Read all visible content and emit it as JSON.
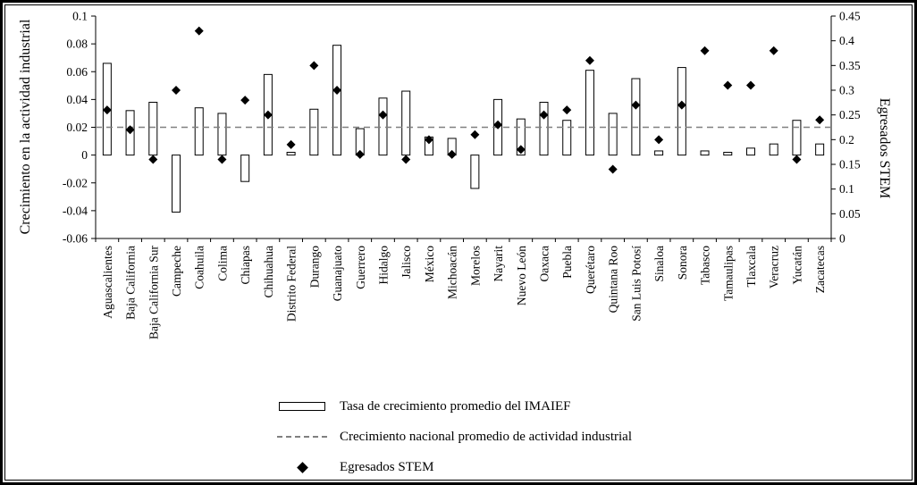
{
  "legend": {
    "bar_label": "Tasa de crecimiento promedio del IMAIEF",
    "line_label": "Crecimiento nacional promedio de actividad industrial",
    "diamond_label": "Egresados STEM"
  },
  "chart_data": {
    "type": "bar+scatter dual-axis",
    "categories": [
      "Aguascalientes",
      "Baja California",
      "Baja California Sur",
      "Campeche",
      "Coahuila",
      "Colima",
      "Chiapas",
      "Chihuahua",
      "Distrito Federal",
      "Durango",
      "Guanajuato",
      "Guerrero",
      "Hidalgo",
      "Jalisco",
      "México",
      "Michoacán",
      "Morelos",
      "Nayarit",
      "Nuevo León",
      "Oaxaca",
      "Puebla",
      "Querétaro",
      "Quintana Roo",
      "San Luis Potosí",
      "Sinaloa",
      "Sonora",
      "Tabasco",
      "Tamaulipas",
      "Tlaxcala",
      "Veracruz",
      "Yucatán",
      "Zacatecas"
    ],
    "series": [
      {
        "name": "Tasa de crecimiento promedio del IMAIEF",
        "type": "bar",
        "axis": "left",
        "values": [
          0.066,
          0.032,
          0.038,
          -0.041,
          0.034,
          0.03,
          -0.019,
          0.058,
          0.002,
          0.033,
          0.079,
          0.019,
          0.041,
          0.046,
          0.013,
          0.012,
          -0.024,
          0.04,
          0.026,
          0.038,
          0.025,
          0.061,
          0.03,
          0.055,
          0.003,
          0.063,
          0.003,
          0.002,
          0.005,
          0.008,
          0.025,
          0.008
        ]
      },
      {
        "name": "Egresados STEM",
        "type": "scatter",
        "axis": "right",
        "marker": "diamond",
        "values": [
          0.26,
          0.22,
          0.16,
          0.3,
          0.42,
          0.16,
          0.28,
          0.25,
          0.19,
          0.35,
          0.3,
          0.17,
          0.25,
          0.16,
          0.2,
          0.17,
          0.21,
          0.23,
          0.18,
          0.25,
          0.26,
          0.36,
          0.14,
          0.27,
          0.2,
          0.27,
          0.38,
          0.31,
          0.31,
          0.38,
          0.16,
          0.24
        ]
      },
      {
        "name": "Crecimiento nacional promedio de actividad industrial",
        "type": "hline",
        "axis": "left",
        "value": 0.02
      }
    ],
    "left_axis": {
      "label": "Crecimiento en la actividad industrial",
      "min": -0.06,
      "max": 0.1,
      "tick_step": 0.02,
      "ticks": [
        "0.1",
        "0.08",
        "0.06",
        "0.04",
        "0.02",
        "0",
        "-0.02",
        "-0.04",
        "-0.06"
      ]
    },
    "right_axis": {
      "label": "Egresados STEM",
      "min": 0,
      "max": 0.45,
      "tick_step": 0.05,
      "ticks": [
        "0.45",
        "0.4",
        "0.35",
        "0.3",
        "0.25",
        "0.2",
        "0.15",
        "0.1",
        "0.05",
        "0"
      ]
    },
    "colors": {
      "bar_fill": "#ffffff",
      "bar_stroke": "#000000",
      "diamond": "#000000",
      "hline": "#808080",
      "axis": "#000000"
    },
    "grid": false,
    "legend_position": "bottom"
  }
}
